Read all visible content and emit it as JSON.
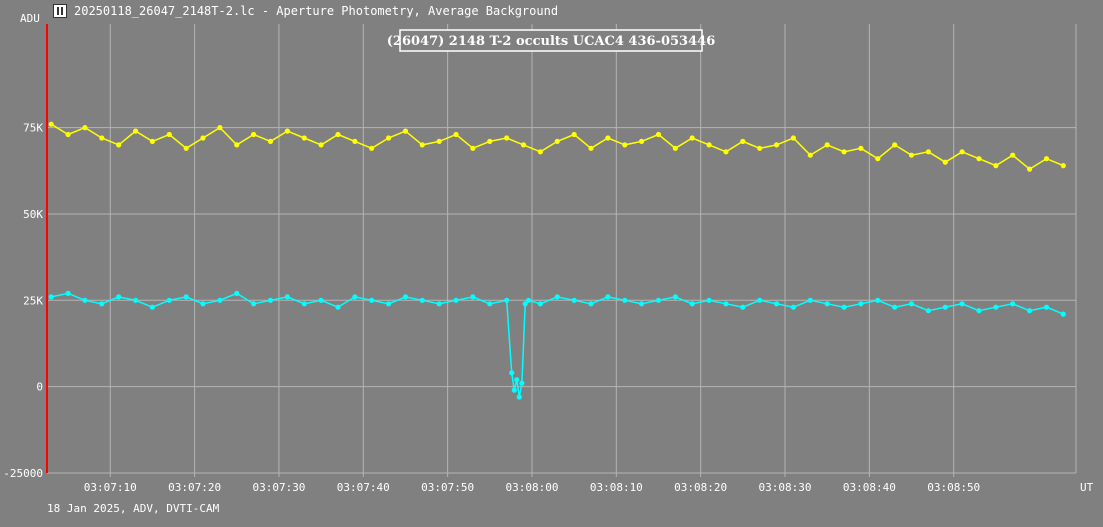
{
  "window": {
    "title": "20250118_26047_2148T-2.lc - Aperture Photometry, Average Background",
    "icon": "lightcurve-app-icon"
  },
  "footer": {
    "caption": "18 Jan 2025, ADV, DVTI-CAM"
  },
  "colors": {
    "background": "#808080",
    "grid": "#b4b4b4",
    "target": "#00ffff",
    "comparison": "#ffff00",
    "marker": "#ff0000",
    "text": "#ffffff"
  },
  "chart_data": {
    "type": "line",
    "title": "(26047) 2148 T-2 occults UCAC4 436-053446",
    "ylabel": "ADU",
    "xlabel": "UT",
    "ylim": [
      -25000,
      105000
    ],
    "xlim": [
      "03:07:02.5",
      "03:09:04.5"
    ],
    "y_ticks": [
      {
        "value": -25000,
        "label": "-25000"
      },
      {
        "value": 0,
        "label": "0"
      },
      {
        "value": 25000,
        "label": "25K"
      },
      {
        "value": 50000,
        "label": "50K"
      },
      {
        "value": 75000,
        "label": "75K"
      }
    ],
    "x_ticks": [
      {
        "value": "03:07:10",
        "label": "03:07:10"
      },
      {
        "value": "03:07:20",
        "label": "03:07:20"
      },
      {
        "value": "03:07:30",
        "label": "03:07:30"
      },
      {
        "value": "03:07:40",
        "label": "03:07:40"
      },
      {
        "value": "03:07:50",
        "label": "03:07:50"
      },
      {
        "value": "03:08:00",
        "label": "03:08:00"
      },
      {
        "value": "03:08:10",
        "label": "03:08:10"
      },
      {
        "value": "03:08:20",
        "label": "03:08:20"
      },
      {
        "value": "03:08:30",
        "label": "03:08:30"
      },
      {
        "value": "03:08:40",
        "label": "03:08:40"
      },
      {
        "value": "03:08:50",
        "label": "03:08:50"
      }
    ],
    "marker_time": "03:07:02.5",
    "grid": true,
    "series": [
      {
        "color": "#ffff00",
        "x": [
          "03:07:03",
          "03:07:05",
          "03:07:07",
          "03:07:09",
          "03:07:11",
          "03:07:13",
          "03:07:15",
          "03:07:17",
          "03:07:19",
          "03:07:21",
          "03:07:23",
          "03:07:25",
          "03:07:27",
          "03:07:29",
          "03:07:31",
          "03:07:33",
          "03:07:35",
          "03:07:37",
          "03:07:39",
          "03:07:41",
          "03:07:43",
          "03:07:45",
          "03:07:47",
          "03:07:49",
          "03:07:51",
          "03:07:53",
          "03:07:55",
          "03:07:57",
          "03:07:59",
          "03:08:01",
          "03:08:03",
          "03:08:05",
          "03:08:07",
          "03:08:09",
          "03:08:11",
          "03:08:13",
          "03:08:15",
          "03:08:17",
          "03:08:19",
          "03:08:21",
          "03:08:23",
          "03:08:25",
          "03:08:27",
          "03:08:29",
          "03:08:31",
          "03:08:33",
          "03:08:35",
          "03:08:37",
          "03:08:39",
          "03:08:41",
          "03:08:43",
          "03:08:45",
          "03:08:47",
          "03:08:49",
          "03:08:51",
          "03:08:53",
          "03:08:55",
          "03:08:57",
          "03:08:59",
          "03:09:01",
          "03:09:03"
        ],
        "y": [
          76000,
          73000,
          75000,
          72000,
          70000,
          74000,
          71000,
          73000,
          69000,
          72000,
          75000,
          70000,
          73000,
          71000,
          74000,
          72000,
          70000,
          73000,
          71000,
          69000,
          72000,
          74000,
          70000,
          71000,
          73000,
          69000,
          71000,
          72000,
          70000,
          68000,
          71000,
          73000,
          69000,
          72000,
          70000,
          71000,
          73000,
          69000,
          72000,
          70000,
          68000,
          71000,
          69000,
          70000,
          72000,
          67000,
          70000,
          68000,
          69000,
          66000,
          70000,
          67000,
          68000,
          65000,
          68000,
          66000,
          64000,
          67000,
          63000,
          66000,
          64000
        ]
      },
      {
        "color": "#00ffff",
        "x": [
          "03:07:03",
          "03:07:05",
          "03:07:07",
          "03:07:09",
          "03:07:11",
          "03:07:13",
          "03:07:15",
          "03:07:17",
          "03:07:19",
          "03:07:21",
          "03:07:23",
          "03:07:25",
          "03:07:27",
          "03:07:29",
          "03:07:31",
          "03:07:33",
          "03:07:35",
          "03:07:37",
          "03:07:39",
          "03:07:41",
          "03:07:43",
          "03:07:45",
          "03:07:47",
          "03:07:49",
          "03:07:51",
          "03:07:53",
          "03:07:55",
          "03:07:57",
          "03:07:57.6",
          "03:07:57.9",
          "03:07:58.2",
          "03:07:58.5",
          "03:07:58.8",
          "03:07:59.2",
          "03:07:59.6",
          "03:08:01",
          "03:08:03",
          "03:08:05",
          "03:08:07",
          "03:08:09",
          "03:08:11",
          "03:08:13",
          "03:08:15",
          "03:08:17",
          "03:08:19",
          "03:08:21",
          "03:08:23",
          "03:08:25",
          "03:08:27",
          "03:08:29",
          "03:08:31",
          "03:08:33",
          "03:08:35",
          "03:08:37",
          "03:08:39",
          "03:08:41",
          "03:08:43",
          "03:08:45",
          "03:08:47",
          "03:08:49",
          "03:08:51",
          "03:08:53",
          "03:08:55",
          "03:08:57",
          "03:08:59",
          "03:09:01",
          "03:09:03"
        ],
        "y": [
          26000,
          27000,
          25000,
          24000,
          26000,
          25000,
          23000,
          25000,
          26000,
          24000,
          25000,
          27000,
          24000,
          25000,
          26000,
          24000,
          25000,
          23000,
          26000,
          25000,
          24000,
          26000,
          25000,
          24000,
          25000,
          26000,
          24000,
          25000,
          4000,
          -1000,
          2000,
          -3000,
          1000,
          24000,
          25000,
          24000,
          26000,
          25000,
          24000,
          26000,
          25000,
          24000,
          25000,
          26000,
          24000,
          25000,
          24000,
          23000,
          25000,
          24000,
          23000,
          25000,
          24000,
          23000,
          24000,
          25000,
          23000,
          24000,
          22000,
          23000,
          24000,
          22000,
          23000,
          24000,
          22000,
          23000,
          21000
        ]
      }
    ]
  }
}
